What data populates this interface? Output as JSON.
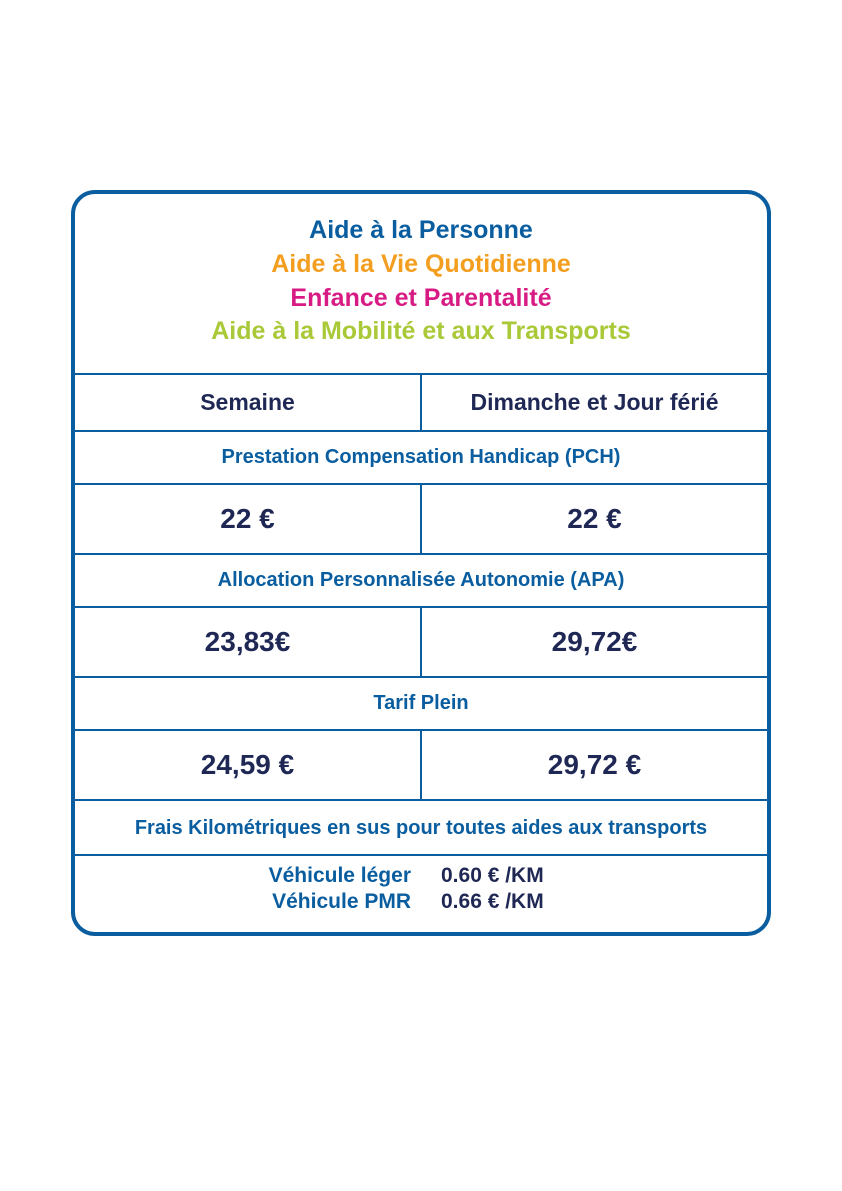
{
  "colors": {
    "border": "#0a5ea0",
    "blue_text": "#0a5ea0",
    "dark_navy": "#1f2855",
    "orange": "#f39e1f",
    "magenta": "#d81b84",
    "lime": "#a9c938",
    "background": "#ffffff"
  },
  "header": {
    "line1": {
      "text": "Aide à la Personne",
      "color": "#0a5ea0"
    },
    "line2": {
      "text": "Aide à la Vie Quotidienne",
      "color": "#f39e1f"
    },
    "line3": {
      "text": "Enfance et Parentalité",
      "color": "#d81b84"
    },
    "line4": {
      "text": "Aide à la Mobilité et aux Transports",
      "color": "#a9c938"
    }
  },
  "columns": {
    "weekday": "Semaine",
    "holiday": "Dimanche et Jour férié"
  },
  "sections": {
    "pch": {
      "label": "Prestation Compensation Handicap (PCH)",
      "weekday": "22 €",
      "holiday": "22 €"
    },
    "apa": {
      "label": "Allocation Personnalisée Autonomie (APA)",
      "weekday": "23,83€",
      "holiday": "29,72€"
    },
    "full": {
      "label": "Tarif Plein",
      "weekday": "24,59 €",
      "holiday": "29,72 €"
    }
  },
  "km": {
    "note": "Frais Kilométriques en sus pour toutes aides aux transports",
    "light": {
      "label": "Véhicule léger",
      "value": "0.60 € /KM"
    },
    "pmr": {
      "label": "Véhicule PMR",
      "value": "0.66 € /KM"
    }
  }
}
